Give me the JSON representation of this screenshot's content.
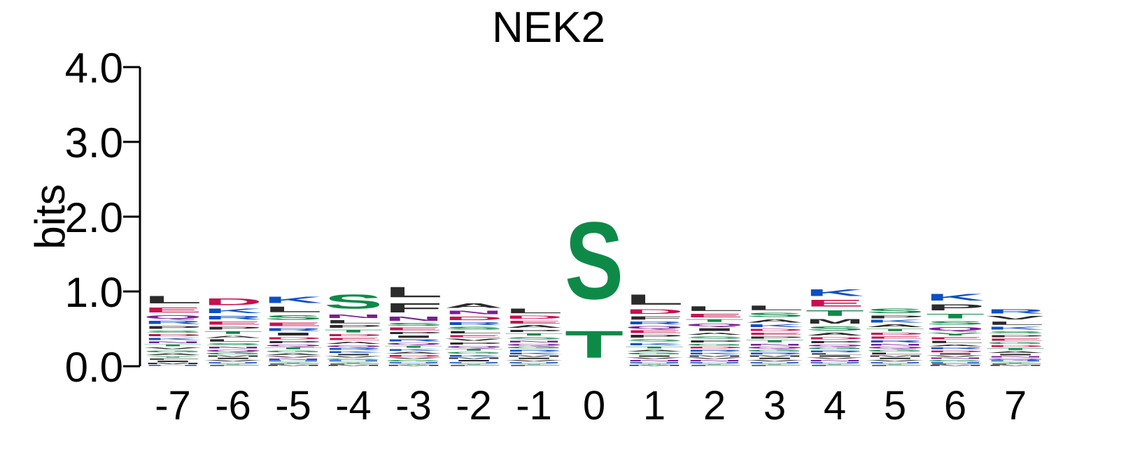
{
  "colors": {
    "hydrophobic": "#2b2b2b",
    "acidic": "#c8104d",
    "basic": "#0b4fc4",
    "polar": "#0e8a48",
    "amide": "#7a1d96",
    "axis": "#000000"
  },
  "chart_data": {
    "type": "sequence-logo",
    "title": "NEK2",
    "ylabel": "bits",
    "ylim": [
      0,
      4
    ],
    "yticks": [
      "0.0",
      "1.0",
      "2.0",
      "3.0",
      "4.0"
    ],
    "positions": [
      "-7",
      "-6",
      "-5",
      "-4",
      "-3",
      "-2",
      "-1",
      "0",
      "1",
      "2",
      "3",
      "4",
      "5",
      "6",
      "7"
    ],
    "stacks": [
      [
        [
          "L",
          0.16
        ],
        [
          "E",
          0.11
        ],
        [
          "Q",
          0.08
        ],
        [
          "R",
          0.07
        ],
        [
          "P",
          0.06
        ],
        [
          "K",
          0.05
        ],
        [
          "D",
          0.05
        ],
        [
          "S",
          0.05
        ],
        [
          "A",
          0.04
        ],
        [
          "G",
          0.04
        ],
        [
          "V",
          0.04
        ],
        [
          "T",
          0.04
        ],
        [
          "N",
          0.04
        ],
        [
          "M",
          0.03
        ],
        [
          "I",
          0.03
        ],
        [
          "F",
          0.03
        ],
        [
          "Y",
          0.03
        ],
        [
          "H",
          0.02
        ]
      ],
      [
        [
          "D",
          0.14
        ],
        [
          "K",
          0.1
        ],
        [
          "R",
          0.08
        ],
        [
          "E",
          0.07
        ],
        [
          "T",
          0.06
        ],
        [
          "P",
          0.06
        ],
        [
          "S",
          0.05
        ],
        [
          "L",
          0.05
        ],
        [
          "A",
          0.05
        ],
        [
          "G",
          0.04
        ],
        [
          "Q",
          0.04
        ],
        [
          "N",
          0.04
        ],
        [
          "V",
          0.03
        ],
        [
          "I",
          0.03
        ],
        [
          "M",
          0.03
        ],
        [
          "F",
          0.02
        ],
        [
          "Y",
          0.02
        ],
        [
          "H",
          0.02
        ]
      ],
      [
        [
          "K",
          0.13
        ],
        [
          "L",
          0.12
        ],
        [
          "S",
          0.1
        ],
        [
          "E",
          0.08
        ],
        [
          "I",
          0.06
        ],
        [
          "R",
          0.06
        ],
        [
          "P",
          0.05
        ],
        [
          "D",
          0.05
        ],
        [
          "A",
          0.04
        ],
        [
          "G",
          0.04
        ],
        [
          "T",
          0.04
        ],
        [
          "Q",
          0.04
        ],
        [
          "N",
          0.03
        ],
        [
          "V",
          0.03
        ],
        [
          "M",
          0.02
        ],
        [
          "F",
          0.02
        ],
        [
          "Y",
          0.02
        ],
        [
          "H",
          0.02
        ]
      ],
      [
        [
          "S",
          0.3
        ],
        [
          "L",
          0.07
        ],
        [
          "N",
          0.08
        ],
        [
          "T",
          0.06
        ],
        [
          "P",
          0.06
        ],
        [
          "A",
          0.05
        ],
        [
          "E",
          0.05
        ],
        [
          "D",
          0.05
        ],
        [
          "K",
          0.04
        ],
        [
          "R",
          0.04
        ],
        [
          "Q",
          0.04
        ],
        [
          "G",
          0.03
        ],
        [
          "V",
          0.03
        ],
        [
          "I",
          0.03
        ],
        [
          "M",
          0.02
        ],
        [
          "F",
          0.02
        ],
        [
          "Y",
          0.02
        ],
        [
          "H",
          0.02
        ]
      ],
      [
        [
          "F",
          0.2
        ],
        [
          "L",
          0.22
        ],
        [
          "N",
          0.09
        ],
        [
          "E",
          0.06
        ],
        [
          "S",
          0.06
        ],
        [
          "R",
          0.05
        ],
        [
          "I",
          0.05
        ],
        [
          "P",
          0.05
        ],
        [
          "D",
          0.04
        ],
        [
          "A",
          0.04
        ],
        [
          "K",
          0.04
        ],
        [
          "T",
          0.04
        ],
        [
          "Q",
          0.04
        ],
        [
          "G",
          0.03
        ],
        [
          "V",
          0.03
        ],
        [
          "M",
          0.02
        ],
        [
          "Y",
          0.02
        ],
        [
          "H",
          0.02
        ]
      ],
      [
        [
          "A",
          0.1
        ],
        [
          "D",
          0.08
        ],
        [
          "N",
          0.08
        ],
        [
          "S",
          0.06
        ],
        [
          "R",
          0.06
        ],
        [
          "P",
          0.05
        ],
        [
          "V",
          0.05
        ],
        [
          "E",
          0.05
        ],
        [
          "L",
          0.05
        ],
        [
          "K",
          0.04
        ],
        [
          "G",
          0.04
        ],
        [
          "T",
          0.04
        ],
        [
          "Q",
          0.04
        ],
        [
          "I",
          0.03
        ],
        [
          "M",
          0.03
        ],
        [
          "F",
          0.02
        ],
        [
          "Y",
          0.02
        ],
        [
          "H",
          0.02
        ]
      ],
      [
        [
          "L",
          0.1
        ],
        [
          "A",
          0.06
        ],
        [
          "D",
          0.07
        ],
        [
          "E",
          0.06
        ],
        [
          "S",
          0.05
        ],
        [
          "T",
          0.05
        ],
        [
          "P",
          0.05
        ],
        [
          "K",
          0.04
        ],
        [
          "R",
          0.04
        ],
        [
          "G",
          0.04
        ],
        [
          "Q",
          0.04
        ],
        [
          "N",
          0.04
        ],
        [
          "V",
          0.03
        ],
        [
          "I",
          0.03
        ],
        [
          "M",
          0.03
        ],
        [
          "F",
          0.02
        ],
        [
          "Y",
          0.02
        ],
        [
          "H",
          0.02
        ]
      ],
      [
        [
          "S",
          1.65
        ],
        [
          "T",
          0.58
        ]
      ],
      [
        [
          "L",
          0.22
        ],
        [
          "D",
          0.1
        ],
        [
          "F",
          0.07
        ],
        [
          "P",
          0.06
        ],
        [
          "E",
          0.06
        ],
        [
          "Q",
          0.06
        ],
        [
          "R",
          0.06
        ],
        [
          "K",
          0.05
        ],
        [
          "S",
          0.05
        ],
        [
          "G",
          0.04
        ],
        [
          "A",
          0.04
        ],
        [
          "T",
          0.04
        ],
        [
          "N",
          0.03
        ],
        [
          "V",
          0.03
        ],
        [
          "I",
          0.03
        ],
        [
          "M",
          0.02
        ],
        [
          "Y",
          0.02
        ],
        [
          "H",
          0.02
        ]
      ],
      [
        [
          "L",
          0.1
        ],
        [
          "E",
          0.08
        ],
        [
          "I",
          0.06
        ],
        [
          "Q",
          0.06
        ],
        [
          "T",
          0.06
        ],
        [
          "P",
          0.05
        ],
        [
          "S",
          0.05
        ],
        [
          "A",
          0.05
        ],
        [
          "K",
          0.04
        ],
        [
          "R",
          0.04
        ],
        [
          "D",
          0.04
        ],
        [
          "G",
          0.04
        ],
        [
          "N",
          0.03
        ],
        [
          "V",
          0.03
        ],
        [
          "M",
          0.03
        ],
        [
          "F",
          0.02
        ],
        [
          "Y",
          0.02
        ],
        [
          "H",
          0.02
        ]
      ],
      [
        [
          "L",
          0.1
        ],
        [
          "S",
          0.09
        ],
        [
          "A",
          0.07
        ],
        [
          "K",
          0.06
        ],
        [
          "T",
          0.05
        ],
        [
          "P",
          0.05
        ],
        [
          "E",
          0.05
        ],
        [
          "D",
          0.05
        ],
        [
          "R",
          0.04
        ],
        [
          "G",
          0.04
        ],
        [
          "Q",
          0.04
        ],
        [
          "N",
          0.04
        ],
        [
          "V",
          0.03
        ],
        [
          "I",
          0.03
        ],
        [
          "M",
          0.03
        ],
        [
          "F",
          0.02
        ],
        [
          "Y",
          0.02
        ],
        [
          "H",
          0.02
        ]
      ],
      [
        [
          "E",
          0.14
        ],
        [
          "K",
          0.14
        ],
        [
          "S",
          0.09
        ],
        [
          "T",
          0.12
        ],
        [
          "M",
          0.1
        ],
        [
          "A",
          0.06
        ],
        [
          "P",
          0.05
        ],
        [
          "D",
          0.05
        ],
        [
          "R",
          0.04
        ],
        [
          "G",
          0.04
        ],
        [
          "Q",
          0.04
        ],
        [
          "N",
          0.03
        ],
        [
          "V",
          0.03
        ],
        [
          "I",
          0.03
        ],
        [
          "L",
          0.03
        ],
        [
          "F",
          0.02
        ],
        [
          "Y",
          0.02
        ],
        [
          "H",
          0.02
        ]
      ],
      [
        [
          "S",
          0.1
        ],
        [
          "A",
          0.06
        ],
        [
          "K",
          0.06
        ],
        [
          "P",
          0.06
        ],
        [
          "R",
          0.05
        ],
        [
          "E",
          0.05
        ],
        [
          "D",
          0.05
        ],
        [
          "T",
          0.05
        ],
        [
          "L",
          0.04
        ],
        [
          "G",
          0.04
        ],
        [
          "Q",
          0.04
        ],
        [
          "N",
          0.04
        ],
        [
          "V",
          0.03
        ],
        [
          "I",
          0.03
        ],
        [
          "M",
          0.03
        ],
        [
          "F",
          0.02
        ],
        [
          "Y",
          0.02
        ],
        [
          "H",
          0.02
        ]
      ],
      [
        [
          "K",
          0.14
        ],
        [
          "P",
          0.13
        ],
        [
          "T",
          0.1
        ],
        [
          "Q",
          0.08
        ],
        [
          "S",
          0.08
        ],
        [
          "Y",
          0.06
        ],
        [
          "L",
          0.05
        ],
        [
          "E",
          0.05
        ],
        [
          "D",
          0.04
        ],
        [
          "R",
          0.04
        ],
        [
          "A",
          0.04
        ],
        [
          "G",
          0.03
        ],
        [
          "N",
          0.03
        ],
        [
          "V",
          0.03
        ],
        [
          "I",
          0.03
        ],
        [
          "M",
          0.02
        ],
        [
          "F",
          0.02
        ],
        [
          "H",
          0.02
        ]
      ],
      [
        [
          "R",
          0.09
        ],
        [
          "V",
          0.08
        ],
        [
          "L",
          0.07
        ],
        [
          "K",
          0.06
        ],
        [
          "E",
          0.05
        ],
        [
          "P",
          0.05
        ],
        [
          "S",
          0.05
        ],
        [
          "A",
          0.04
        ],
        [
          "T",
          0.04
        ],
        [
          "D",
          0.04
        ],
        [
          "G",
          0.04
        ],
        [
          "Q",
          0.03
        ],
        [
          "N",
          0.03
        ],
        [
          "I",
          0.03
        ],
        [
          "M",
          0.02
        ],
        [
          "F",
          0.02
        ],
        [
          "Y",
          0.02
        ],
        [
          "H",
          0.02
        ]
      ]
    ]
  }
}
